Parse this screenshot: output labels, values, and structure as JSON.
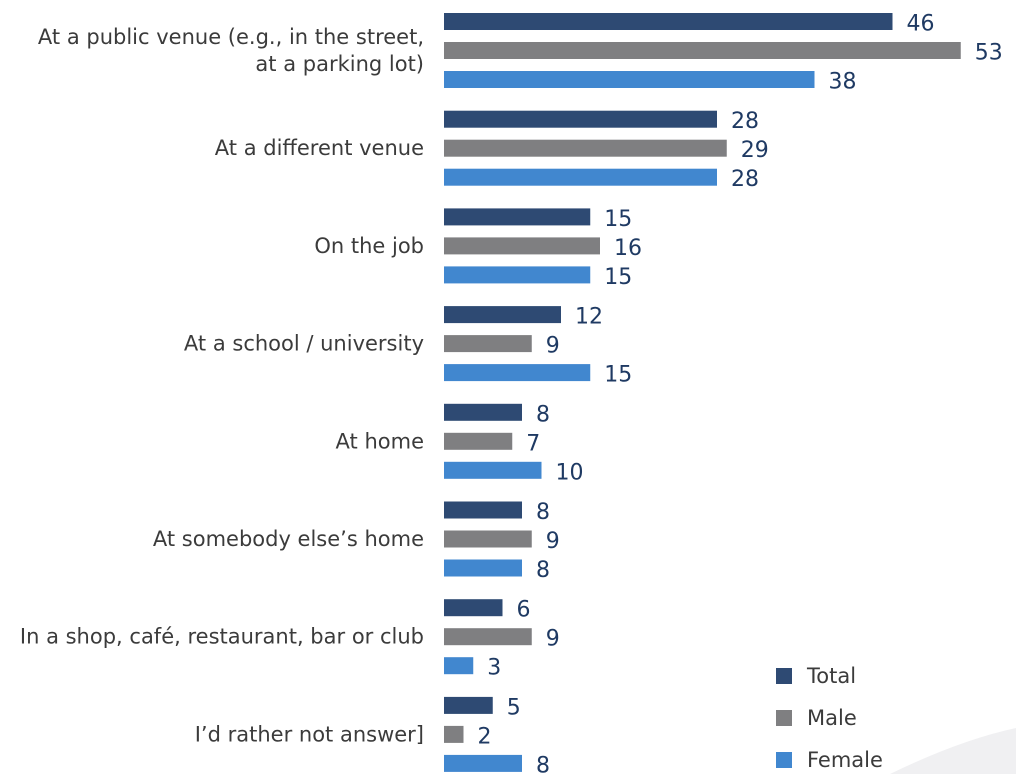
{
  "chart_data": {
    "type": "bar",
    "orientation": "horizontal",
    "categories": [
      "At a public venue (e.g., in the street,\nat a parking lot)",
      "At a different venue",
      "On the job",
      "At a school / university",
      "At home",
      "At somebody else’s home",
      "In a shop, café, restaurant, bar or club",
      "I’d rather not answer]"
    ],
    "series": [
      {
        "name": "Total",
        "color": "#2e4a73",
        "values": [
          46,
          28,
          15,
          12,
          8,
          8,
          6,
          5
        ]
      },
      {
        "name": "Male",
        "color": "#7f7f81",
        "values": [
          53,
          29,
          16,
          9,
          7,
          9,
          9,
          2
        ]
      },
      {
        "name": "Female",
        "color": "#4187cf",
        "values": [
          38,
          28,
          15,
          15,
          10,
          8,
          3,
          8
        ]
      }
    ],
    "xlim": [
      0,
      55
    ],
    "grid": false,
    "legend_position": "bottom-right",
    "data_label_color": "#1f3a63"
  }
}
